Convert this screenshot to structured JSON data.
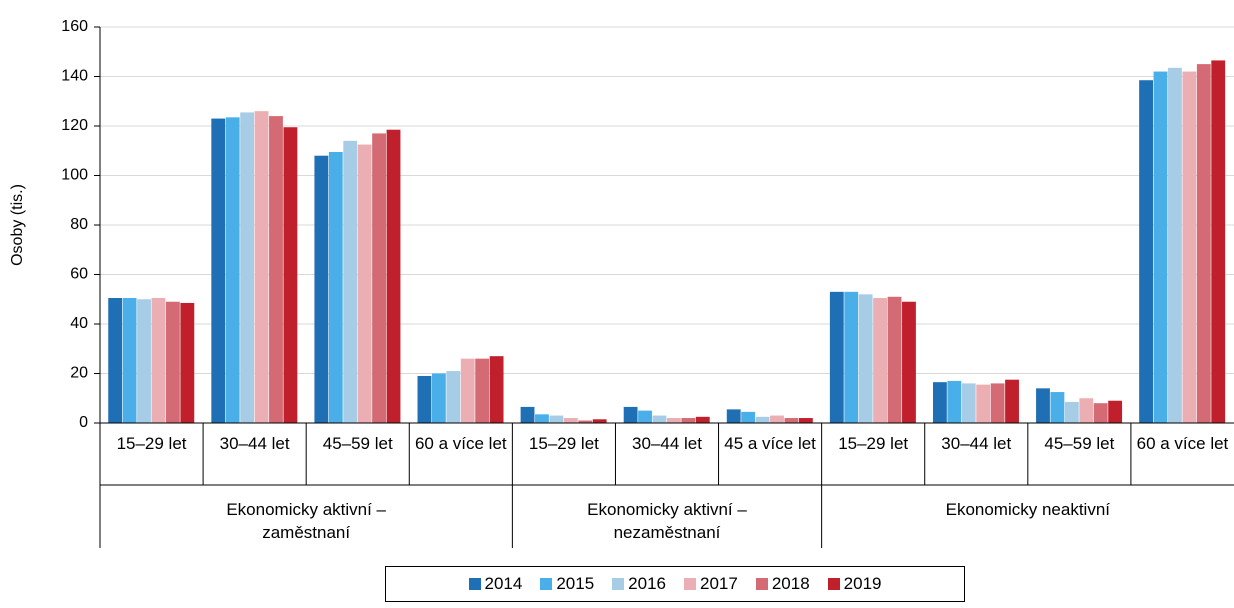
{
  "chart_data": {
    "type": "bar",
    "y_label": "Osoby (tis.)",
    "groups": [
      {
        "name": "Ekonomicky aktivní – zaměstnaní",
        "categories": [
          "15–29 let",
          "30–44 let",
          "45–59 let",
          "60 a více let"
        ]
      },
      {
        "name": "Ekonomicky aktivní – nezaměstnaní",
        "categories": [
          "15–29 let",
          "30–44 let",
          "45 a více let"
        ]
      },
      {
        "name": "Ekonomicky neaktivní",
        "categories": [
          "15–29 let",
          "30–44 let",
          "45–59 let",
          "60 a více let"
        ]
      }
    ],
    "series": [
      {
        "name": "2014",
        "color": "#1f6fb5",
        "values": [
          50.5,
          123,
          108,
          19,
          6.5,
          6.5,
          5.5,
          53,
          16.5,
          14,
          138.5
        ]
      },
      {
        "name": "2015",
        "color": "#4aaee8",
        "values": [
          50.5,
          123.5,
          109.5,
          20,
          3.5,
          5,
          4.5,
          53,
          17,
          12.5,
          142
        ]
      },
      {
        "name": "2016",
        "color": "#a7cde6",
        "values": [
          50,
          125.5,
          114,
          21,
          3,
          3,
          2.5,
          52,
          16,
          8.5,
          143.5
        ]
      },
      {
        "name": "2017",
        "color": "#eaaeb3",
        "values": [
          50.5,
          126,
          112.5,
          26,
          2,
          2,
          3,
          50.5,
          15.5,
          10,
          142
        ]
      },
      {
        "name": "2018",
        "color": "#d46a73",
        "values": [
          49,
          124,
          117,
          26,
          1,
          2,
          2,
          51,
          16,
          8,
          145
        ]
      },
      {
        "name": "2019",
        "color": "#c0202b",
        "values": [
          48.5,
          119.5,
          118.5,
          27,
          1.5,
          2.5,
          2,
          49,
          17.5,
          9,
          146.5
        ]
      }
    ],
    "ylim": [
      0,
      160
    ],
    "yticks": [
      0,
      20,
      40,
      60,
      80,
      100,
      120,
      140,
      160
    ],
    "grid": true
  }
}
